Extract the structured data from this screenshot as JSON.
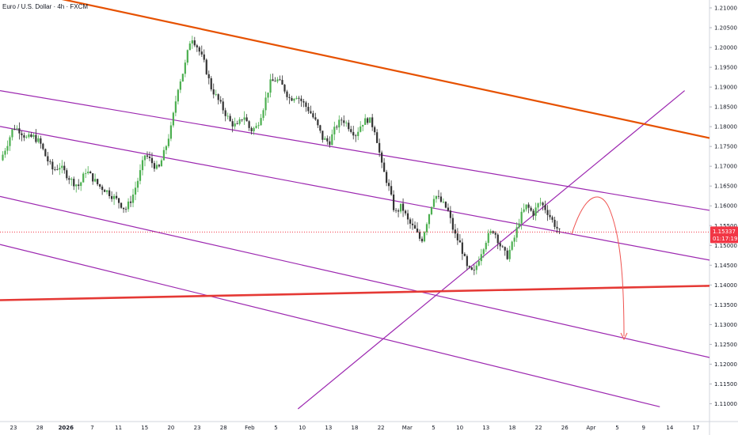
{
  "chart_data": {
    "type": "candlestick",
    "title": "Euro / U.S. Dollar · 4h · FXCM",
    "ylim": [
      1.1055,
      1.212
    ],
    "y_ticks": [
      "1.21000",
      "1.20500",
      "1.20000",
      "1.19500",
      "1.19000",
      "1.18500",
      "1.18000",
      "1.17500",
      "1.17000",
      "1.16500",
      "1.16000",
      "1.15500",
      "1.15000",
      "1.14500",
      "1.14000",
      "1.13500",
      "1.13000",
      "1.12500",
      "1.12000",
      "1.11500",
      "1.11000"
    ],
    "x_ticks": [
      {
        "label": "23",
        "bold": false
      },
      {
        "label": "28",
        "bold": false
      },
      {
        "label": "2026",
        "bold": true
      },
      {
        "label": "7",
        "bold": false
      },
      {
        "label": "11",
        "bold": false
      },
      {
        "label": "15",
        "bold": false
      },
      {
        "label": "20",
        "bold": false
      },
      {
        "label": "23",
        "bold": false
      },
      {
        "label": "28",
        "bold": false
      },
      {
        "label": "Feb",
        "bold": false
      },
      {
        "label": "5",
        "bold": false
      },
      {
        "label": "10",
        "bold": false
      },
      {
        "label": "13",
        "bold": false
      },
      {
        "label": "18",
        "bold": false
      },
      {
        "label": "22",
        "bold": false
      },
      {
        "label": "Mar",
        "bold": false
      },
      {
        "label": "5",
        "bold": false
      },
      {
        "label": "10",
        "bold": false
      },
      {
        "label": "13",
        "bold": false
      },
      {
        "label": "18",
        "bold": false
      },
      {
        "label": "22",
        "bold": false
      },
      {
        "label": "26",
        "bold": false
      },
      {
        "label": "Apr",
        "bold": false
      },
      {
        "label": "5",
        "bold": false
      },
      {
        "label": "9",
        "bold": false
      },
      {
        "label": "14",
        "bold": false
      },
      {
        "label": "17",
        "bold": false
      }
    ],
    "last_price": "1.15337",
    "countdown": "01:17:19",
    "colors": {
      "up": "#26a69a",
      "down": "#ef5350",
      "body_up": "#4caf50",
      "body_down": "#333333",
      "channel": "#9c27b0",
      "resistance": "#e65100",
      "support": "#e53935",
      "projection": "#ef5350",
      "price_label": "#f23645"
    },
    "price_path": [
      [
        1.1715,
        0
      ],
      [
        1.1755,
        0.1
      ],
      [
        1.18,
        0.2
      ],
      [
        1.179,
        0.3
      ],
      [
        1.177,
        0.4
      ],
      [
        1.1775,
        0.5
      ],
      [
        1.176,
        0.6
      ],
      [
        1.172,
        0.7
      ],
      [
        1.169,
        0.8
      ],
      [
        1.17,
        0.9
      ],
      [
        1.168,
        1.0
      ],
      [
        1.166,
        1.1
      ],
      [
        1.165,
        1.2
      ],
      [
        1.169,
        1.3
      ],
      [
        1.167,
        1.4
      ],
      [
        1.165,
        1.5
      ],
      [
        1.164,
        1.6
      ],
      [
        1.1625,
        1.7
      ],
      [
        1.161,
        1.8
      ],
      [
        1.159,
        1.9
      ],
      [
        1.162,
        2.0
      ],
      [
        1.167,
        2.1
      ],
      [
        1.173,
        2.2
      ],
      [
        1.171,
        2.3
      ],
      [
        1.169,
        2.4
      ],
      [
        1.174,
        2.5
      ],
      [
        1.18,
        2.6
      ],
      [
        1.19,
        2.7
      ],
      [
        1.195,
        2.8
      ],
      [
        1.203,
        2.9
      ],
      [
        1.2,
        3.0
      ],
      [
        1.196,
        3.1
      ],
      [
        1.19,
        3.2
      ],
      [
        1.187,
        3.3
      ],
      [
        1.184,
        3.4
      ],
      [
        1.181,
        3.5
      ],
      [
        1.18,
        3.6
      ],
      [
        1.183,
        3.7
      ],
      [
        1.179,
        3.8
      ],
      [
        1.18,
        3.9
      ],
      [
        1.185,
        4.0
      ],
      [
        1.191,
        4.1
      ],
      [
        1.192,
        4.2
      ],
      [
        1.19,
        4.3
      ],
      [
        1.187,
        4.4
      ],
      [
        1.188,
        4.5
      ],
      [
        1.186,
        4.6
      ],
      [
        1.184,
        4.7
      ],
      [
        1.181,
        4.8
      ],
      [
        1.177,
        4.9
      ],
      [
        1.176,
        5.0
      ],
      [
        1.18,
        5.1
      ],
      [
        1.182,
        5.2
      ],
      [
        1.18,
        5.3
      ],
      [
        1.178,
        5.4
      ],
      [
        1.181,
        5.5
      ],
      [
        1.182,
        5.6
      ],
      [
        1.179,
        5.7
      ],
      [
        1.17,
        5.8
      ],
      [
        1.165,
        5.9
      ],
      [
        1.158,
        6.0
      ],
      [
        1.16,
        6.1
      ],
      [
        1.156,
        6.2
      ],
      [
        1.154,
        6.3
      ],
      [
        1.151,
        6.4
      ],
      [
        1.157,
        6.5
      ],
      [
        1.163,
        6.6
      ],
      [
        1.161,
        6.7
      ],
      [
        1.159,
        6.8
      ],
      [
        1.153,
        6.9
      ],
      [
        1.15,
        7.0
      ],
      [
        1.144,
        7.1
      ],
      [
        1.143,
        7.2
      ],
      [
        1.148,
        7.3
      ],
      [
        1.152,
        7.4
      ],
      [
        1.154,
        7.5
      ],
      [
        1.15,
        7.6
      ],
      [
        1.147,
        7.7
      ],
      [
        1.151,
        7.8
      ],
      [
        1.157,
        7.9
      ],
      [
        1.16,
        8.0
      ],
      [
        1.158,
        8.1
      ],
      [
        1.161,
        8.2
      ],
      [
        1.159,
        8.3
      ],
      [
        1.156,
        8.4
      ],
      [
        1.1534,
        8.5
      ]
    ],
    "lines": {
      "resistance": [
        [
          0.065,
          -0.01
        ],
        [
          1.0,
          0.3275
        ]
      ],
      "channel_1": [
        [
          0.0,
          0.215
        ],
        [
          1.0,
          0.499
        ]
      ],
      "channel_2": [
        [
          0.0,
          0.3
        ],
        [
          1.0,
          0.617
        ]
      ],
      "channel_3": [
        [
          0.0,
          0.466
        ],
        [
          1.0,
          0.848
        ]
      ],
      "channel_4": [
        [
          0.0,
          0.58
        ],
        [
          0.93,
          0.965
        ]
      ],
      "uptrend": [
        [
          0.42,
          0.97
        ],
        [
          0.965,
          0.215
        ]
      ],
      "support": [
        [
          0.0,
          0.712
        ],
        [
          1.0,
          0.678
        ]
      ]
    }
  }
}
